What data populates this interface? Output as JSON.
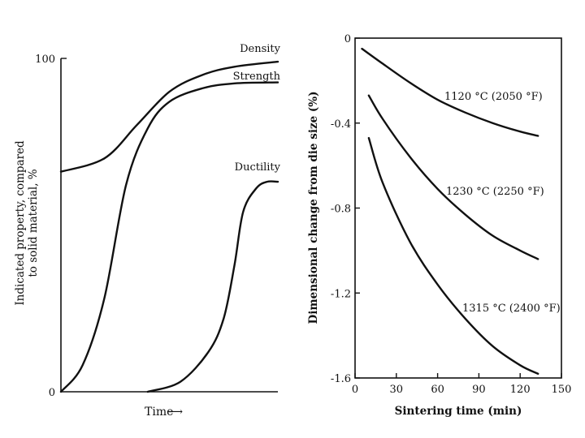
{
  "chart_data": [
    {
      "type": "line",
      "title": "",
      "xlabel": "Time",
      "x_arrow": "⟶",
      "ylabel_lines": [
        "Indicated property, compared",
        "to solid material, %"
      ],
      "ylim": [
        0,
        100
      ],
      "y_ticks": [
        "0",
        "100"
      ],
      "x_ticks": [],
      "series": [
        {
          "name": "Density",
          "x": [
            0,
            0.2,
            0.35,
            0.5,
            0.65,
            0.8,
            1.0
          ],
          "values": [
            66,
            70,
            80,
            90,
            95,
            97.5,
            99
          ]
        },
        {
          "name": "Strength",
          "x": [
            0,
            0.1,
            0.2,
            0.3,
            0.4,
            0.5,
            0.65,
            0.8,
            1.0
          ],
          "values": [
            0,
            8,
            28,
            62,
            79,
            87,
            91,
            92.5,
            92.8
          ]
        },
        {
          "name": "Ductility",
          "x": [
            0.4,
            0.55,
            0.68,
            0.75,
            0.8,
            0.84,
            0.9,
            0.95,
            1.0
          ],
          "values": [
            0,
            3,
            12,
            22,
            38,
            54,
            61,
            63,
            63
          ]
        }
      ]
    },
    {
      "type": "line",
      "title": "",
      "xlabel": "Sintering time (min)",
      "ylabel": "Dimensional change from die size (%)",
      "xlim": [
        0,
        150
      ],
      "ylim": [
        -1.6,
        0
      ],
      "x_ticks": [
        0,
        30,
        60,
        90,
        120,
        150
      ],
      "y_ticks": [
        0,
        -0.4,
        -0.8,
        -1.2,
        -1.6
      ],
      "x_tick_labels": [
        "0",
        "30",
        "60",
        "90",
        "120",
        "150"
      ],
      "y_tick_labels": [
        "0",
        "-0.4",
        "-0.8",
        "-1.2",
        "-1.6"
      ],
      "series": [
        {
          "name": "1120 °C (2050 °F)",
          "x": [
            5,
            20,
            40,
            60,
            80,
            100,
            120,
            133
          ],
          "values": [
            -0.05,
            -0.12,
            -0.21,
            -0.29,
            -0.35,
            -0.4,
            -0.44,
            -0.46
          ]
        },
        {
          "name": "1230 °C (2250 °F)",
          "x": [
            10,
            20,
            40,
            60,
            80,
            100,
            120,
            133
          ],
          "values": [
            -0.27,
            -0.38,
            -0.56,
            -0.71,
            -0.83,
            -0.93,
            -1.0,
            -1.04
          ]
        },
        {
          "name": "1315 °C (2400 °F)",
          "x": [
            10,
            20,
            40,
            60,
            80,
            100,
            120,
            133
          ],
          "values": [
            -0.47,
            -0.68,
            -0.96,
            -1.16,
            -1.32,
            -1.45,
            -1.54,
            -1.58
          ]
        }
      ]
    }
  ]
}
